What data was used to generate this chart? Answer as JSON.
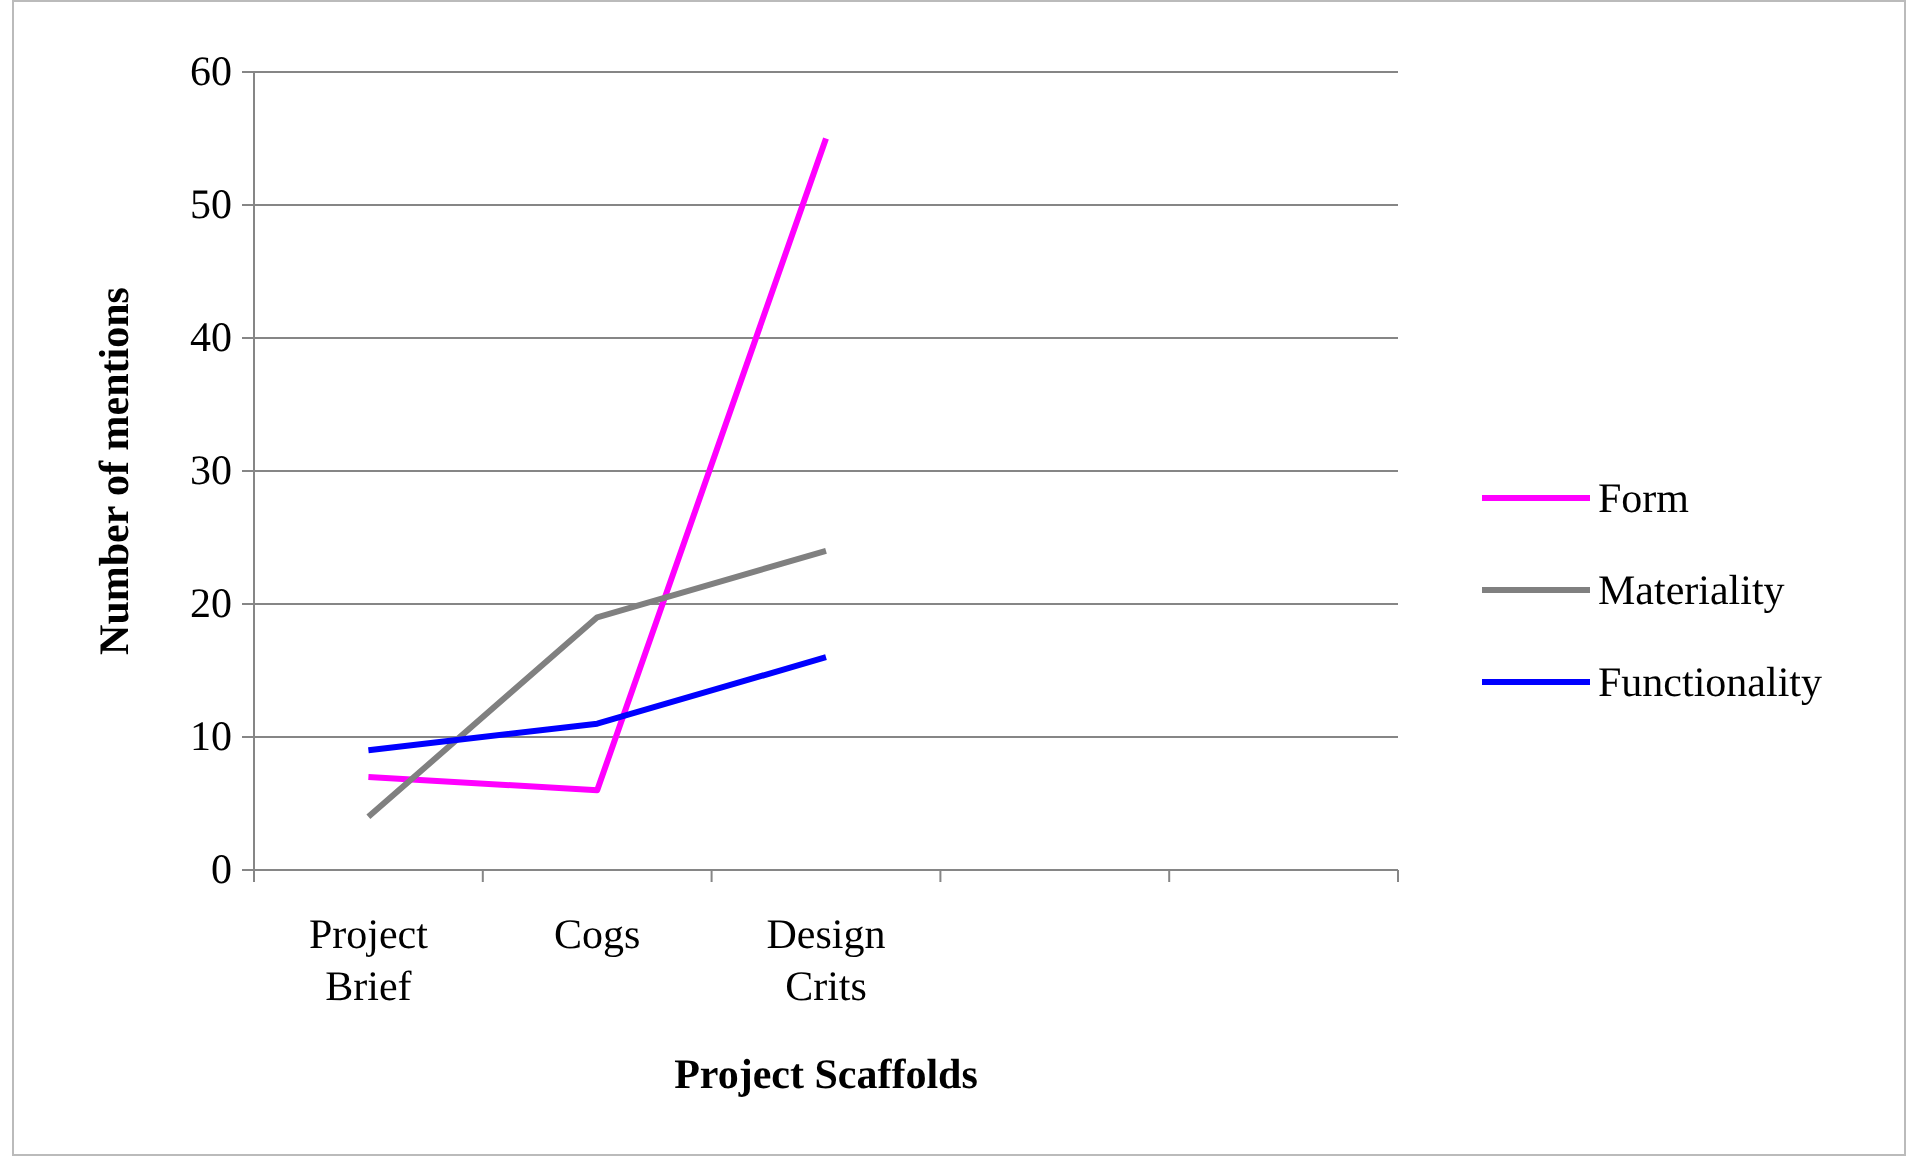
{
  "chart_data": {
    "type": "line",
    "xlabel": "Project Scaffolds",
    "ylabel": "Number of mentions",
    "categories": [
      "Project Brief",
      "Cogs",
      "Design Crits",
      null,
      null
    ],
    "series": [
      {
        "name": "Form",
        "color": "#ff00ff",
        "values": [
          7,
          6,
          55,
          null,
          null
        ]
      },
      {
        "name": "Materiality",
        "color": "#808080",
        "values": [
          4,
          19,
          24,
          null,
          null
        ]
      },
      {
        "name": "Functionality",
        "color": "#0000ff",
        "values": [
          9,
          11,
          16,
          null,
          null
        ]
      }
    ],
    "ylim": [
      0,
      60
    ],
    "yticks": [
      0,
      10,
      20,
      30,
      40,
      50,
      60
    ],
    "grid": "y",
    "legend": "right",
    "marker": "none",
    "line_style": "solid"
  }
}
